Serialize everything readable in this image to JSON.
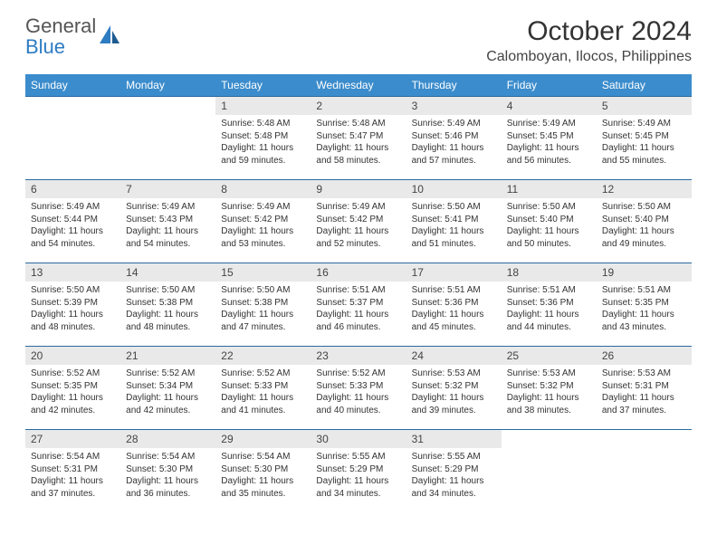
{
  "brand": {
    "part1": "General",
    "part2": "Blue"
  },
  "title": "October 2024",
  "location": "Calomboyan, Ilocos, Philippines",
  "colors": {
    "header_bg": "#3b8ccc",
    "row_divider": "#2a6aa0",
    "daynum_bg": "#e9e9e9",
    "logo_blue": "#2e7cc2",
    "text": "#333333"
  },
  "weekdays": [
    "Sunday",
    "Monday",
    "Tuesday",
    "Wednesday",
    "Thursday",
    "Friday",
    "Saturday"
  ],
  "labels": {
    "sunrise": "Sunrise:",
    "sunset": "Sunset:",
    "daylight": "Daylight:"
  },
  "weeks": [
    [
      null,
      null,
      {
        "d": "1",
        "sr": "5:48 AM",
        "ss": "5:48 PM",
        "dl": "11 hours and 59 minutes."
      },
      {
        "d": "2",
        "sr": "5:48 AM",
        "ss": "5:47 PM",
        "dl": "11 hours and 58 minutes."
      },
      {
        "d": "3",
        "sr": "5:49 AM",
        "ss": "5:46 PM",
        "dl": "11 hours and 57 minutes."
      },
      {
        "d": "4",
        "sr": "5:49 AM",
        "ss": "5:45 PM",
        "dl": "11 hours and 56 minutes."
      },
      {
        "d": "5",
        "sr": "5:49 AM",
        "ss": "5:45 PM",
        "dl": "11 hours and 55 minutes."
      }
    ],
    [
      {
        "d": "6",
        "sr": "5:49 AM",
        "ss": "5:44 PM",
        "dl": "11 hours and 54 minutes."
      },
      {
        "d": "7",
        "sr": "5:49 AM",
        "ss": "5:43 PM",
        "dl": "11 hours and 54 minutes."
      },
      {
        "d": "8",
        "sr": "5:49 AM",
        "ss": "5:42 PM",
        "dl": "11 hours and 53 minutes."
      },
      {
        "d": "9",
        "sr": "5:49 AM",
        "ss": "5:42 PM",
        "dl": "11 hours and 52 minutes."
      },
      {
        "d": "10",
        "sr": "5:50 AM",
        "ss": "5:41 PM",
        "dl": "11 hours and 51 minutes."
      },
      {
        "d": "11",
        "sr": "5:50 AM",
        "ss": "5:40 PM",
        "dl": "11 hours and 50 minutes."
      },
      {
        "d": "12",
        "sr": "5:50 AM",
        "ss": "5:40 PM",
        "dl": "11 hours and 49 minutes."
      }
    ],
    [
      {
        "d": "13",
        "sr": "5:50 AM",
        "ss": "5:39 PM",
        "dl": "11 hours and 48 minutes."
      },
      {
        "d": "14",
        "sr": "5:50 AM",
        "ss": "5:38 PM",
        "dl": "11 hours and 48 minutes."
      },
      {
        "d": "15",
        "sr": "5:50 AM",
        "ss": "5:38 PM",
        "dl": "11 hours and 47 minutes."
      },
      {
        "d": "16",
        "sr": "5:51 AM",
        "ss": "5:37 PM",
        "dl": "11 hours and 46 minutes."
      },
      {
        "d": "17",
        "sr": "5:51 AM",
        "ss": "5:36 PM",
        "dl": "11 hours and 45 minutes."
      },
      {
        "d": "18",
        "sr": "5:51 AM",
        "ss": "5:36 PM",
        "dl": "11 hours and 44 minutes."
      },
      {
        "d": "19",
        "sr": "5:51 AM",
        "ss": "5:35 PM",
        "dl": "11 hours and 43 minutes."
      }
    ],
    [
      {
        "d": "20",
        "sr": "5:52 AM",
        "ss": "5:35 PM",
        "dl": "11 hours and 42 minutes."
      },
      {
        "d": "21",
        "sr": "5:52 AM",
        "ss": "5:34 PM",
        "dl": "11 hours and 42 minutes."
      },
      {
        "d": "22",
        "sr": "5:52 AM",
        "ss": "5:33 PM",
        "dl": "11 hours and 41 minutes."
      },
      {
        "d": "23",
        "sr": "5:52 AM",
        "ss": "5:33 PM",
        "dl": "11 hours and 40 minutes."
      },
      {
        "d": "24",
        "sr": "5:53 AM",
        "ss": "5:32 PM",
        "dl": "11 hours and 39 minutes."
      },
      {
        "d": "25",
        "sr": "5:53 AM",
        "ss": "5:32 PM",
        "dl": "11 hours and 38 minutes."
      },
      {
        "d": "26",
        "sr": "5:53 AM",
        "ss": "5:31 PM",
        "dl": "11 hours and 37 minutes."
      }
    ],
    [
      {
        "d": "27",
        "sr": "5:54 AM",
        "ss": "5:31 PM",
        "dl": "11 hours and 37 minutes."
      },
      {
        "d": "28",
        "sr": "5:54 AM",
        "ss": "5:30 PM",
        "dl": "11 hours and 36 minutes."
      },
      {
        "d": "29",
        "sr": "5:54 AM",
        "ss": "5:30 PM",
        "dl": "11 hours and 35 minutes."
      },
      {
        "d": "30",
        "sr": "5:55 AM",
        "ss": "5:29 PM",
        "dl": "11 hours and 34 minutes."
      },
      {
        "d": "31",
        "sr": "5:55 AM",
        "ss": "5:29 PM",
        "dl": "11 hours and 34 minutes."
      },
      null,
      null
    ]
  ]
}
